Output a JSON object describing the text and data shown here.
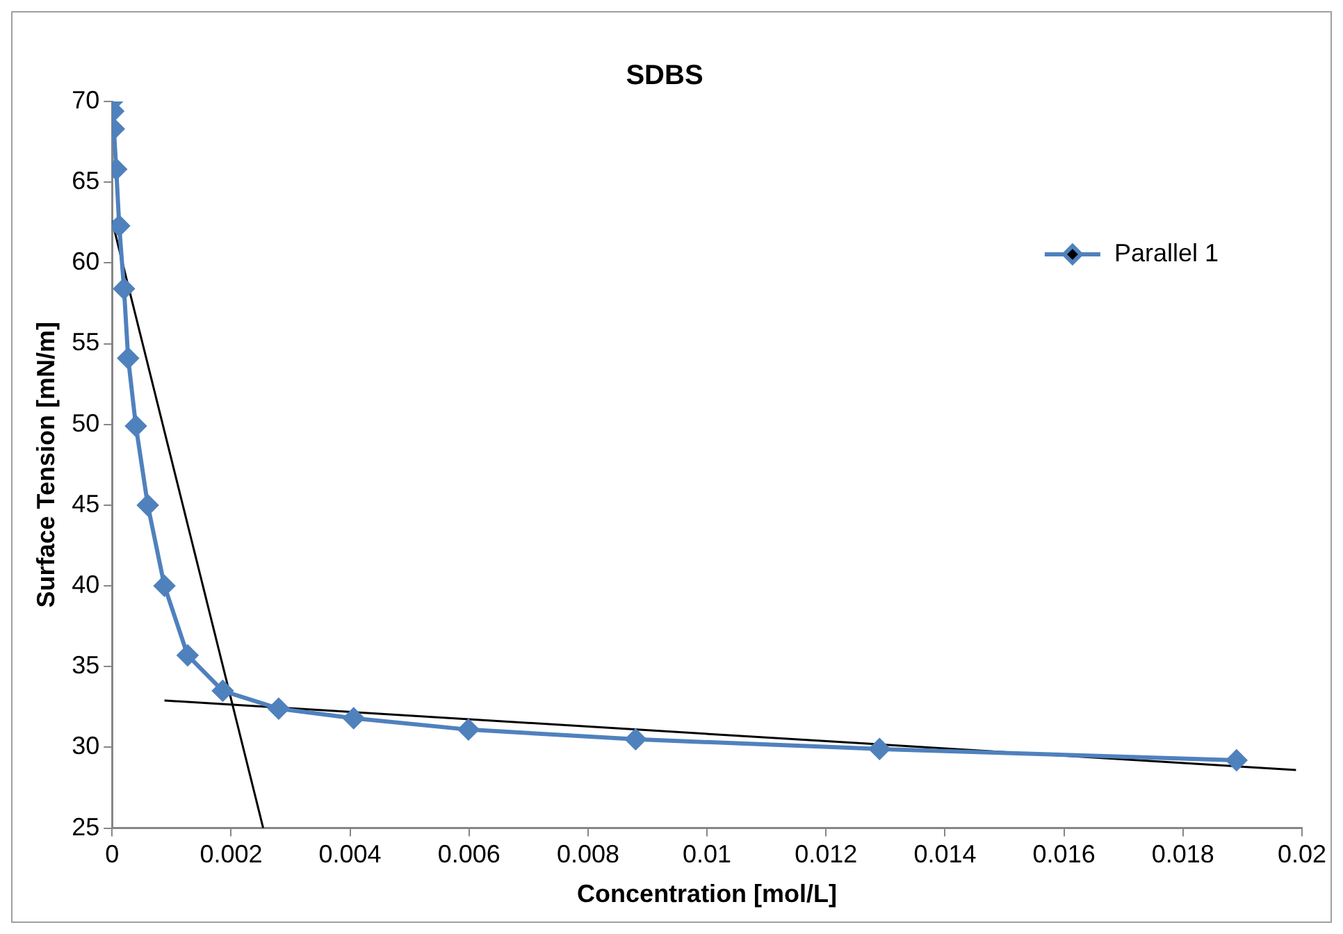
{
  "chart_data": {
    "type": "line",
    "title": "SDBS",
    "xlabel": "Concentration [mol/L]",
    "ylabel": "Surface Tension [mN/m]",
    "xlim": [
      0,
      0.02
    ],
    "xticks": [
      0,
      0.002,
      0.004,
      0.006,
      0.008,
      0.01,
      0.012,
      0.014,
      0.016,
      0.018,
      0.02
    ],
    "ylim": [
      25,
      70
    ],
    "yticks": [
      25,
      30,
      35,
      40,
      45,
      50,
      55,
      60,
      65,
      70
    ],
    "grid": false,
    "legend": "top right",
    "marker": "diamond",
    "line_style": "solid",
    "series": [
      {
        "name": "Parallel 1",
        "color": "#4f81bd",
        "x": [
          0,
          2e-05,
          3e-05,
          7e-05,
          0.00012,
          0.0002,
          0.00027,
          0.0004,
          0.0006,
          0.00088,
          0.00127,
          0.00186,
          0.0028,
          0.00406,
          0.00599,
          0.0088,
          0.0129,
          0.0189
        ],
        "values": [
          70,
          69.4,
          68.3,
          65.8,
          62.3,
          58.4,
          54.1,
          49.9,
          45,
          40,
          35.7,
          33.5,
          32.4,
          31.8,
          31.1,
          30.5,
          29.9,
          29.2
        ]
      },
      {
        "type": "line",
        "color": "#000000",
        "marker": "none",
        "x": [
          0,
          0.00254
        ],
        "values": [
          62.6,
          25
        ]
      },
      {
        "type": "line",
        "color": "#000000",
        "marker": "none",
        "x": [
          0.00088,
          0.0199
        ],
        "values": [
          32.9,
          28.6
        ]
      }
    ]
  }
}
